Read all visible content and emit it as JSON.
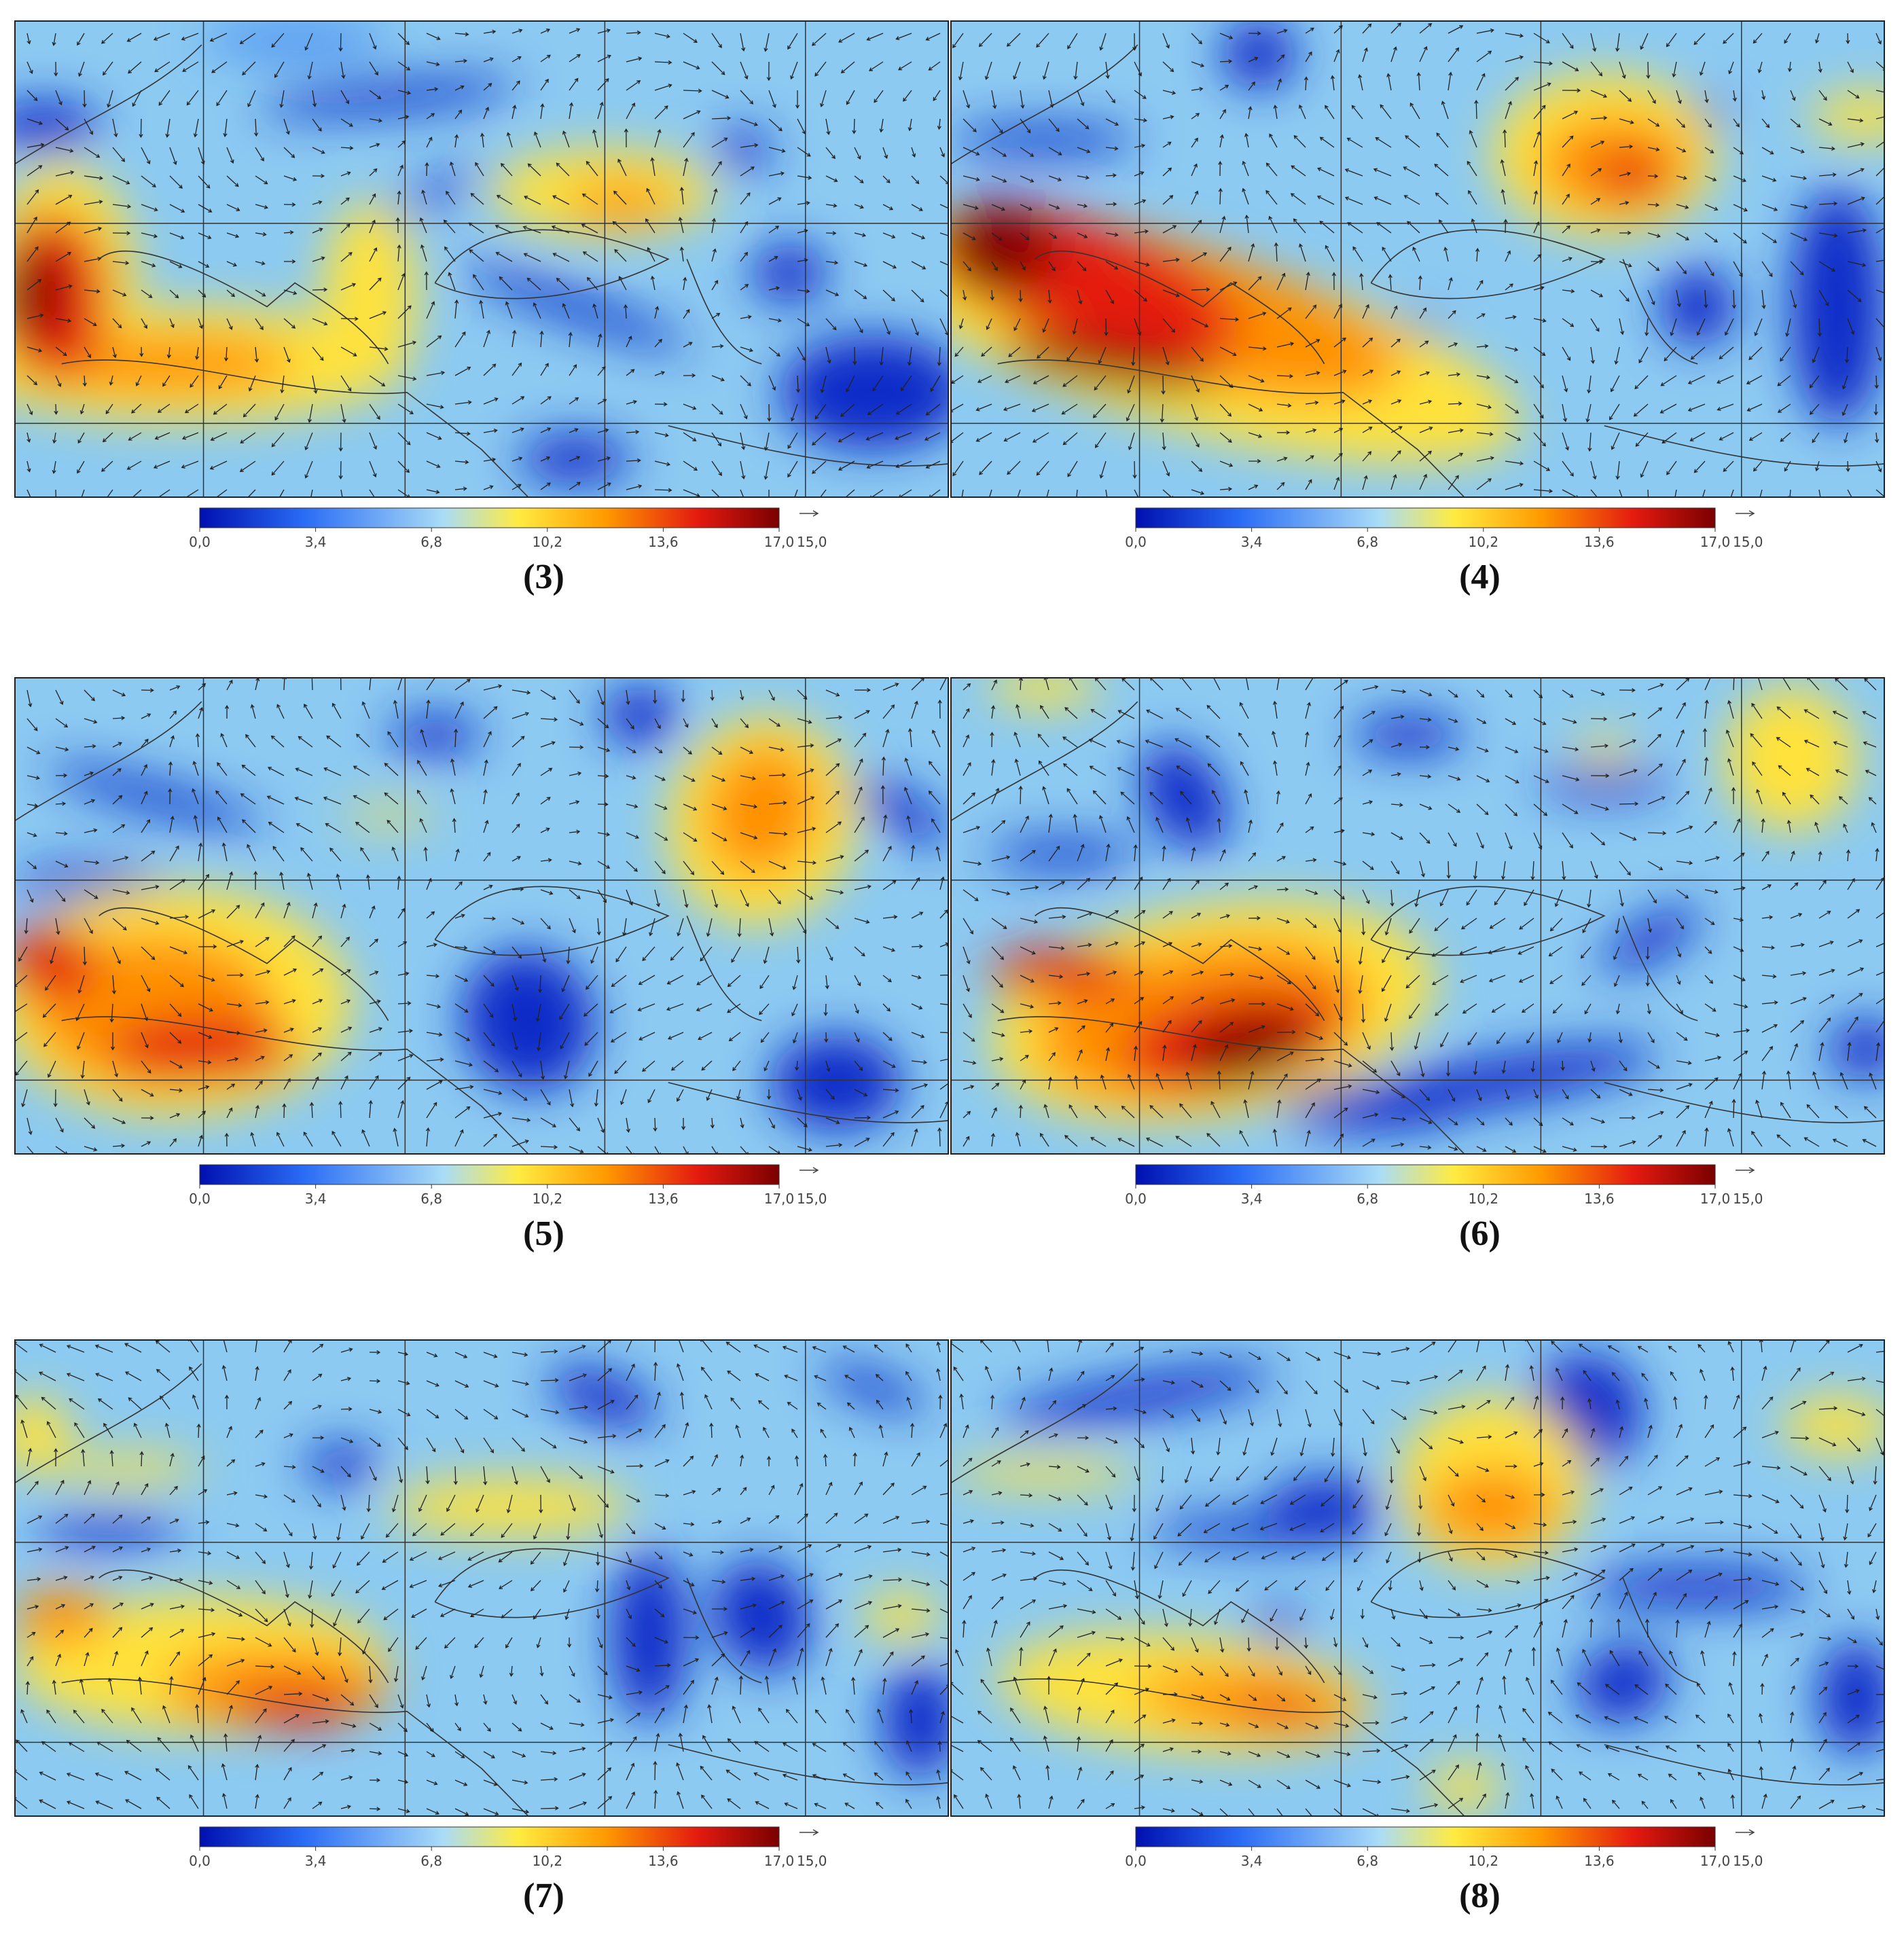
{
  "panels": [
    {
      "label": "(3)",
      "colorbar": {
        "lim": [
          0,
          17
        ],
        "ticks": [
          {
            "value": 0,
            "label": "0,0"
          },
          {
            "value": 3.4,
            "label": "3,4"
          },
          {
            "value": 6.8,
            "label": "6,8"
          },
          {
            "value": 10.2,
            "label": "10,2"
          },
          {
            "value": 13.6,
            "label": "13,6"
          },
          {
            "value": 17,
            "label": "17,0"
          }
        ]
      },
      "reference_vector": {
        "value": 15,
        "label": "15,0"
      }
    },
    {
      "label": "(4)",
      "colorbar": {
        "lim": [
          0,
          17
        ],
        "ticks": [
          {
            "value": 0,
            "label": "0,0"
          },
          {
            "value": 3.4,
            "label": "3,4"
          },
          {
            "value": 6.8,
            "label": "6,8"
          },
          {
            "value": 10.2,
            "label": "10,2"
          },
          {
            "value": 13.6,
            "label": "13,6"
          },
          {
            "value": 17,
            "label": "17,0"
          }
        ]
      },
      "reference_vector": {
        "value": 15,
        "label": "15,0"
      }
    },
    {
      "label": "(5)",
      "colorbar": {
        "lim": [
          0,
          17
        ],
        "ticks": [
          {
            "value": 0,
            "label": "0,0"
          },
          {
            "value": 3.4,
            "label": "3,4"
          },
          {
            "value": 6.8,
            "label": "6,8"
          },
          {
            "value": 10.2,
            "label": "10,2"
          },
          {
            "value": 13.6,
            "label": "13,6"
          },
          {
            "value": 17,
            "label": "17,0"
          }
        ]
      },
      "reference_vector": {
        "value": 15,
        "label": "15,0"
      }
    },
    {
      "label": "(6)",
      "colorbar": {
        "lim": [
          0,
          17
        ],
        "ticks": [
          {
            "value": 0,
            "label": "0,0"
          },
          {
            "value": 3.4,
            "label": "3,4"
          },
          {
            "value": 6.8,
            "label": "6,8"
          },
          {
            "value": 10.2,
            "label": "10,2"
          },
          {
            "value": 13.6,
            "label": "13,6"
          },
          {
            "value": 17,
            "label": "17,0"
          }
        ]
      },
      "reference_vector": {
        "value": 15,
        "label": "15,0"
      }
    },
    {
      "label": "(7)",
      "colorbar": {
        "lim": [
          0,
          17
        ],
        "ticks": [
          {
            "value": 0,
            "label": "0,0"
          },
          {
            "value": 3.4,
            "label": "3,4"
          },
          {
            "value": 6.8,
            "label": "6,8"
          },
          {
            "value": 10.2,
            "label": "10,2"
          },
          {
            "value": 13.6,
            "label": "13,6"
          },
          {
            "value": 17,
            "label": "17,0"
          }
        ]
      },
      "reference_vector": {
        "value": 15,
        "label": "15,0"
      }
    },
    {
      "label": "(8)",
      "colorbar": {
        "lim": [
          0,
          17
        ],
        "ticks": [
          {
            "value": 0,
            "label": "0,0"
          },
          {
            "value": 3.4,
            "label": "3,4"
          },
          {
            "value": 6.8,
            "label": "6,8"
          },
          {
            "value": 10.2,
            "label": "10,2"
          },
          {
            "value": 13.6,
            "label": "13,6"
          },
          {
            "value": 17,
            "label": "17,0"
          }
        ]
      },
      "reference_vector": {
        "value": 15,
        "label": "15,0"
      }
    }
  ]
}
